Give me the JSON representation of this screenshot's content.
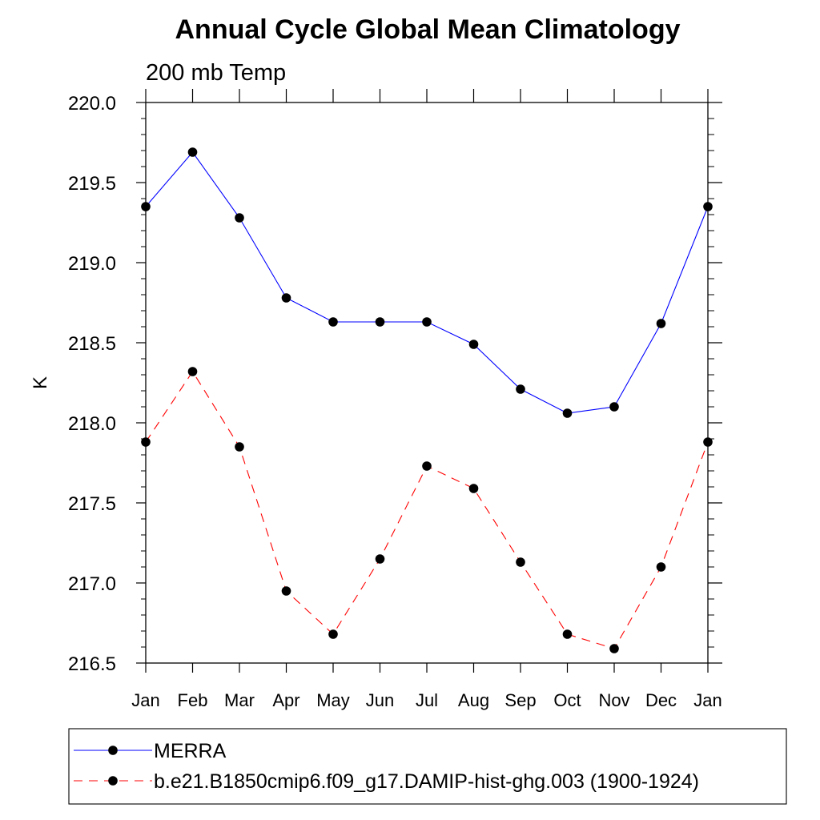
{
  "chart_data": {
    "type": "line",
    "title": "Annual Cycle Global Mean Climatology",
    "subtitle": "200 mb Temp",
    "xlabel": "",
    "ylabel": "K",
    "categories": [
      "Jan",
      "Feb",
      "Mar",
      "Apr",
      "May",
      "Jun",
      "Jul",
      "Aug",
      "Sep",
      "Oct",
      "Nov",
      "Dec",
      "Jan"
    ],
    "ylim": [
      216.5,
      220.0
    ],
    "yticks": [
      216.5,
      217.0,
      217.5,
      218.0,
      218.5,
      219.0,
      219.5,
      220.0
    ],
    "ytick_labels": [
      "216.5",
      "217.0",
      "217.5",
      "218.0",
      "218.5",
      "219.0",
      "219.5",
      "220.0"
    ],
    "grid": false,
    "legend_position": "bottom",
    "series": [
      {
        "name": "MERRA",
        "color": "#0000ff",
        "dash": "solid",
        "values": [
          219.35,
          219.69,
          219.28,
          218.78,
          218.63,
          218.63,
          218.63,
          218.49,
          218.21,
          218.06,
          218.1,
          218.62,
          219.35
        ]
      },
      {
        "name": "b.e21.B1850cmip6.f09_g17.DAMIP-hist-ghg.003 (1900-1924)",
        "color": "#ff0000",
        "dash": "dashed",
        "values": [
          217.88,
          218.32,
          217.85,
          216.95,
          216.68,
          217.15,
          217.73,
          217.59,
          217.13,
          216.68,
          216.59,
          217.1,
          217.88
        ]
      }
    ]
  }
}
